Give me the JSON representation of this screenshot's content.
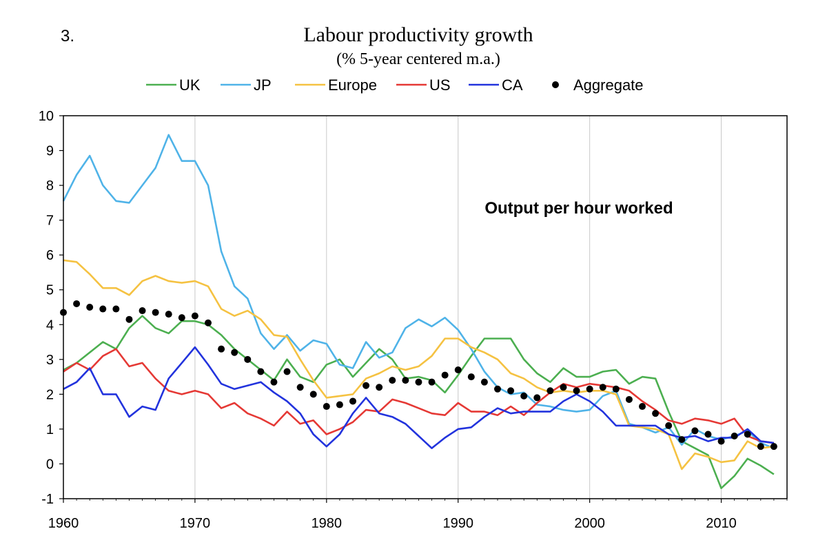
{
  "figure_number": "3.",
  "chart_data": {
    "type": "line",
    "title": "Labour productivity growth",
    "subtitle": "(% 5-year centered m.a.)",
    "annotation": "Output per hour worked",
    "xlabel": "",
    "ylabel": "",
    "xlim": [
      1960,
      2015
    ],
    "ylim": [
      -1,
      10
    ],
    "x_ticks": [
      1960,
      1970,
      1980,
      1990,
      2000,
      2010
    ],
    "y_ticks": [
      -1,
      0,
      1,
      2,
      3,
      4,
      5,
      6,
      7,
      8,
      9,
      10
    ],
    "grid": "vertical",
    "legend_position": "top",
    "x": [
      1960,
      1961,
      1962,
      1963,
      1964,
      1965,
      1966,
      1967,
      1968,
      1969,
      1970,
      1971,
      1972,
      1973,
      1974,
      1975,
      1976,
      1977,
      1978,
      1979,
      1980,
      1981,
      1982,
      1983,
      1984,
      1985,
      1986,
      1987,
      1988,
      1989,
      1990,
      1991,
      1992,
      1993,
      1994,
      1995,
      1996,
      1997,
      1998,
      1999,
      2000,
      2001,
      2002,
      2003,
      2004,
      2005,
      2006,
      2007,
      2008,
      2009,
      2010,
      2011,
      2012,
      2013,
      2014
    ],
    "series": [
      {
        "name": "UK",
        "color": "#4CAF50",
        "style": "line",
        "values": [
          2.7,
          2.9,
          3.2,
          3.5,
          3.3,
          3.9,
          4.25,
          3.9,
          3.75,
          4.1,
          4.1,
          4.0,
          3.7,
          3.3,
          3.0,
          2.7,
          2.4,
          3.0,
          2.5,
          2.35,
          2.85,
          3.0,
          2.5,
          2.9,
          3.3,
          3.0,
          2.45,
          2.5,
          2.4,
          2.05,
          2.55,
          3.1,
          3.6,
          3.6,
          3.6,
          3.0,
          2.6,
          2.35,
          2.75,
          2.5,
          2.5,
          2.65,
          2.7,
          2.3,
          2.5,
          2.45,
          1.5,
          0.65,
          0.45,
          0.25,
          -0.7,
          -0.35,
          0.15,
          -0.05,
          -0.3
        ]
      },
      {
        "name": "JP",
        "color": "#4FB3E8",
        "style": "line",
        "values": [
          7.55,
          8.3,
          8.85,
          8.0,
          7.55,
          7.5,
          8.0,
          8.5,
          9.45,
          8.7,
          8.7,
          8.0,
          6.1,
          5.1,
          4.75,
          3.75,
          3.3,
          3.7,
          3.25,
          3.55,
          3.45,
          2.85,
          2.75,
          3.5,
          3.05,
          3.2,
          3.9,
          4.15,
          3.95,
          4.2,
          3.85,
          3.3,
          2.65,
          2.2,
          2.0,
          2.05,
          1.7,
          1.65,
          1.55,
          1.5,
          1.55,
          1.95,
          2.1,
          1.15,
          1.05,
          0.9,
          1.05,
          0.55,
          1.0,
          0.8,
          0.7,
          0.8,
          0.95,
          0.6,
          0.45
        ]
      },
      {
        "name": "Europe",
        "color": "#F5C242",
        "style": "line",
        "values": [
          5.85,
          5.8,
          5.45,
          5.05,
          5.05,
          4.85,
          5.25,
          5.4,
          5.25,
          5.2,
          5.25,
          5.1,
          4.45,
          4.25,
          4.4,
          4.15,
          3.7,
          3.65,
          3.0,
          2.4,
          1.9,
          1.95,
          2.0,
          2.45,
          2.6,
          2.8,
          2.7,
          2.8,
          3.1,
          3.6,
          3.6,
          3.35,
          3.2,
          3.0,
          2.6,
          2.45,
          2.2,
          2.05,
          2.1,
          2.05,
          2.1,
          2.1,
          2.0,
          1.1,
          1.05,
          1.0,
          0.85,
          -0.15,
          0.3,
          0.2,
          0.05,
          0.1,
          0.65,
          0.45,
          0.5
        ]
      },
      {
        "name": "US",
        "color": "#E53935",
        "style": "line",
        "values": [
          2.65,
          2.9,
          2.7,
          3.1,
          3.3,
          2.8,
          2.9,
          2.45,
          2.1,
          2.0,
          2.1,
          2.0,
          1.6,
          1.75,
          1.45,
          1.3,
          1.1,
          1.5,
          1.15,
          1.25,
          0.85,
          1.0,
          1.2,
          1.55,
          1.5,
          1.85,
          1.75,
          1.6,
          1.45,
          1.4,
          1.75,
          1.5,
          1.5,
          1.4,
          1.65,
          1.4,
          1.75,
          2.05,
          2.3,
          2.2,
          2.3,
          2.25,
          2.2,
          2.1,
          1.8,
          1.55,
          1.25,
          1.15,
          1.3,
          1.25,
          1.15,
          1.3,
          0.8,
          0.65,
          0.6
        ]
      },
      {
        "name": "CA",
        "color": "#2233DD",
        "style": "line",
        "values": [
          2.15,
          2.35,
          2.75,
          2.0,
          2.0,
          1.35,
          1.65,
          1.55,
          2.45,
          2.9,
          3.35,
          2.85,
          2.3,
          2.15,
          2.25,
          2.35,
          2.05,
          1.8,
          1.45,
          0.85,
          0.5,
          0.85,
          1.45,
          1.9,
          1.45,
          1.35,
          1.15,
          0.8,
          0.45,
          0.75,
          1.0,
          1.05,
          1.35,
          1.6,
          1.45,
          1.5,
          1.5,
          1.5,
          1.8,
          2.0,
          1.8,
          1.5,
          1.1,
          1.1,
          1.1,
          1.1,
          0.85,
          0.75,
          0.8,
          0.65,
          0.75,
          0.75,
          1.0,
          0.65,
          0.6
        ]
      },
      {
        "name": "Aggregate",
        "color": "#000000",
        "style": "dots",
        "values": [
          4.35,
          4.6,
          4.5,
          4.45,
          4.45,
          4.15,
          4.4,
          4.35,
          4.3,
          4.2,
          4.25,
          4.05,
          3.3,
          3.2,
          3.0,
          2.65,
          2.35,
          2.65,
          2.2,
          2.0,
          1.65,
          1.7,
          1.8,
          2.25,
          2.2,
          2.4,
          2.4,
          2.35,
          2.35,
          2.55,
          2.7,
          2.5,
          2.35,
          2.15,
          2.1,
          1.95,
          1.9,
          2.1,
          2.2,
          2.1,
          2.15,
          2.2,
          2.15,
          1.85,
          1.65,
          1.45,
          1.1,
          0.7,
          0.95,
          0.85,
          0.65,
          0.8,
          0.85,
          0.5,
          0.5
        ]
      }
    ]
  }
}
